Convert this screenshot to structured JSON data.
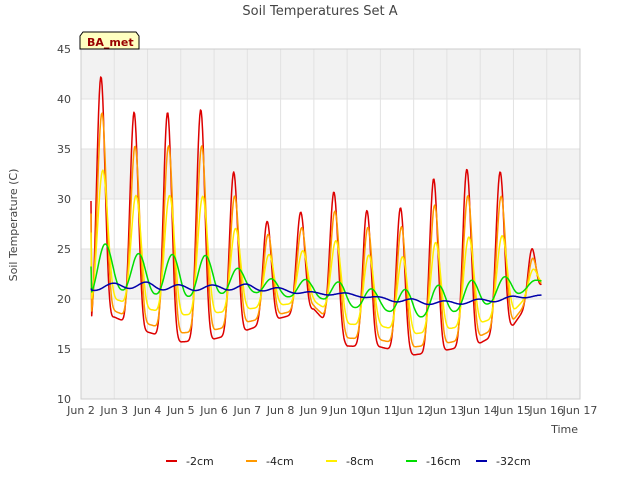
{
  "chart_data": {
    "type": "line",
    "title": "Soil Temperatures Set A",
    "xlabel": "Time",
    "ylabel": "Soil Temperature (C)",
    "badge": "BA_met",
    "xlim": [
      2,
      17
    ],
    "ylim": [
      10,
      45
    ],
    "x_ticks": [
      2,
      3,
      4,
      5,
      6,
      7,
      8,
      9,
      10,
      11,
      12,
      13,
      14,
      15,
      16,
      17
    ],
    "x_tick_labels": [
      "Jun 2",
      "Jun 3",
      "Jun 4",
      "Jun 5",
      "Jun 6",
      "Jun 7",
      "Jun 8",
      "Jun 9",
      "Jun 10",
      "Jun 11",
      "Jun 12",
      "Jun 13",
      "Jun 14",
      "Jun 15",
      "Jun 16",
      "Jun 17"
    ],
    "y_ticks": [
      10,
      15,
      20,
      25,
      30,
      35,
      40,
      45
    ],
    "y_tick_labels": [
      "10",
      "15",
      "20",
      "25",
      "30",
      "35",
      "40",
      "45"
    ],
    "grid": true,
    "legend_position": "bottom",
    "daily_x": [
      2.3,
      3,
      4,
      5,
      6,
      7,
      8,
      9,
      10,
      11,
      12,
      13,
      14,
      15,
      15.85
    ],
    "series": [
      {
        "name": "-2cm",
        "color": "#dd0000",
        "daily_min": [
          16.8,
          18.2,
          16.7,
          15.7,
          16.0,
          16.9,
          18.1,
          19.0,
          15.3,
          15.2,
          14.4,
          14.9,
          15.6,
          17.4,
          21.5
        ],
        "daily_max": [
          42.8,
          41.5,
          36.8,
          39.9,
          38.3,
          28.9,
          27.0,
          29.8,
          31.3,
          27.2,
          30.4,
          33.1,
          32.9,
          32.6,
          21.5
        ]
      },
      {
        "name": "-4cm",
        "color": "#ff9900",
        "daily_min": [
          17.8,
          18.8,
          17.5,
          16.6,
          16.9,
          17.7,
          18.5,
          19.3,
          16.1,
          15.9,
          15.2,
          15.6,
          16.3,
          17.9,
          21.6
        ],
        "daily_max": [
          39.3,
          37.8,
          33.8,
          36.2,
          34.8,
          27.6,
          25.8,
          27.9,
          29.3,
          25.9,
          28.0,
          30.2,
          30.4,
          30.2,
          21.6
        ]
      },
      {
        "name": "-8cm",
        "color": "#ffee00",
        "daily_min": [
          19.5,
          20.0,
          19.0,
          18.4,
          18.6,
          19.0,
          19.4,
          19.8,
          17.5,
          17.3,
          16.5,
          17.0,
          17.6,
          18.8,
          21.8
        ],
        "daily_max": [
          33.8,
          32.0,
          29.5,
          30.8,
          30.0,
          25.5,
          23.9,
          25.3,
          26.1,
          23.5,
          24.6,
          26.2,
          26.2,
          26.4,
          21.8
        ]
      },
      {
        "name": "-16cm",
        "color": "#00dd00",
        "daily_min": [
          20.5,
          21.0,
          20.6,
          20.2,
          20.5,
          20.8,
          20.2,
          20.3,
          19.2,
          19.0,
          18.1,
          18.6,
          19.3,
          20.2,
          21.8
        ],
        "daily_max": [
          26.0,
          25.2,
          24.3,
          24.5,
          24.3,
          22.6,
          21.8,
          22.0,
          21.6,
          20.8,
          21.0,
          21.5,
          22.0,
          22.3,
          21.8
        ]
      },
      {
        "name": "-32cm",
        "color": "#0000aa",
        "daily_min": [
          20.8,
          21.1,
          21.0,
          20.8,
          20.9,
          20.9,
          20.7,
          20.4,
          20.4,
          19.9,
          19.5,
          19.4,
          19.6,
          19.9,
          20.4
        ],
        "daily_max": [
          21.3,
          21.6,
          21.7,
          21.4,
          21.4,
          21.5,
          21.1,
          20.7,
          20.6,
          20.2,
          20.0,
          19.8,
          20.0,
          20.3,
          20.4
        ]
      }
    ]
  }
}
